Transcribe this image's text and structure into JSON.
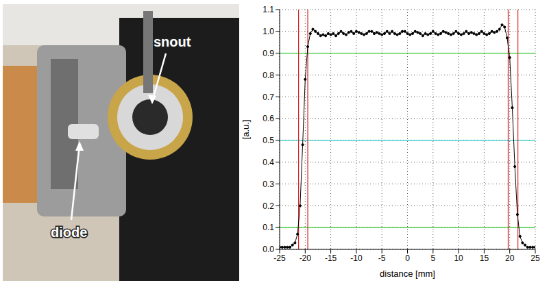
{
  "chart_data": {
    "type": "line",
    "x_label": "distance [mm]",
    "y_label": "[a.u.]",
    "x": [
      -25,
      -24.5,
      -24,
      -23.5,
      -23,
      -22.5,
      -22,
      -21.5,
      -21,
      -20.5,
      -20,
      -19.5,
      -19,
      -18.5,
      -18,
      -17.5,
      -17,
      -16.5,
      -16,
      -15.5,
      -15,
      -14.5,
      -14,
      -13.5,
      -13,
      -12.5,
      -12,
      -11.5,
      -11,
      -10.5,
      -10,
      -9.5,
      -9,
      -8.5,
      -8,
      -7.5,
      -7,
      -6.5,
      -6,
      -5.5,
      -5,
      -4.5,
      -4,
      -3.5,
      -3,
      -2.5,
      -2,
      -1.5,
      -1,
      -0.5,
      0,
      0.5,
      1,
      1.5,
      2,
      2.5,
      3,
      3.5,
      4,
      4.5,
      5,
      5.5,
      6,
      6.5,
      7,
      7.5,
      8,
      8.5,
      9,
      9.5,
      10,
      10.5,
      11,
      11.5,
      12,
      12.5,
      13,
      13.5,
      14,
      14.5,
      15,
      15.5,
      16,
      16.5,
      17,
      17.5,
      18,
      18.5,
      19,
      19.5,
      20,
      20.5,
      21,
      21.5,
      22,
      22.5,
      23,
      23.5,
      24,
      24.5,
      25
    ],
    "values": [
      0.01,
      0.01,
      0.01,
      0.01,
      0.01,
      0.02,
      0.03,
      0.07,
      0.2,
      0.48,
      0.78,
      0.93,
      0.99,
      1.01,
      1.0,
      0.99,
      0.98,
      0.985,
      0.98,
      0.99,
      0.985,
      0.99,
      0.98,
      0.99,
      1.0,
      0.99,
      0.985,
      0.995,
      1.0,
      0.99,
      1.0,
      0.995,
      0.99,
      0.985,
      0.99,
      1.0,
      1.0,
      0.99,
      0.995,
      0.99,
      0.985,
      0.99,
      1.0,
      0.99,
      1.0,
      0.99,
      0.985,
      0.99,
      1.0,
      1.0,
      0.99,
      0.985,
      0.99,
      1.0,
      0.995,
      0.99,
      0.98,
      0.99,
      0.985,
      0.99,
      1.0,
      0.99,
      0.985,
      0.99,
      1.0,
      0.995,
      0.99,
      0.985,
      0.99,
      1.0,
      0.99,
      0.985,
      0.99,
      1.0,
      0.99,
      0.995,
      0.99,
      0.985,
      0.99,
      1.0,
      0.99,
      0.985,
      0.99,
      1.0,
      0.995,
      1.0,
      1.01,
      1.03,
      1.02,
      0.97,
      0.88,
      0.65,
      0.38,
      0.16,
      0.06,
      0.03,
      0.02,
      0.01,
      0.01,
      0.01,
      0.01
    ],
    "color": "#000000",
    "marker": "circle",
    "line_style": "solid",
    "xlim": [
      -25,
      25
    ],
    "xticks": [
      -25,
      -20,
      -15,
      -10,
      -5,
      0,
      5,
      10,
      15,
      20,
      25
    ],
    "ylim": [
      0,
      1.1
    ],
    "yticks": [
      {
        "value": 0,
        "label": "0.0"
      },
      0.1,
      0.2,
      0.3,
      0.4,
      0.5,
      0.6,
      0.7,
      0.8,
      0.9,
      {
        "value": 1,
        "label": "1.0"
      },
      1.1
    ],
    "grid": true,
    "reference_lines": [
      {
        "axis": "y",
        "value": 0.9,
        "color": "#33cc33"
      },
      {
        "axis": "y",
        "value": 0.5,
        "color": "#33cccc"
      },
      {
        "axis": "y",
        "value": 0.1,
        "color": "#33cc33"
      },
      {
        "axis": "x",
        "value": -21.3,
        "color": "#dd2222"
      },
      {
        "axis": "x",
        "value": -19.5,
        "color": "#dd2222"
      },
      {
        "axis": "x",
        "value": 19.7,
        "color": "#dd2222"
      },
      {
        "axis": "x",
        "value": 21.6,
        "color": "#dd2222"
      }
    ]
  },
  "photo": {
    "labels": [
      "snout",
      "diode"
    ]
  }
}
